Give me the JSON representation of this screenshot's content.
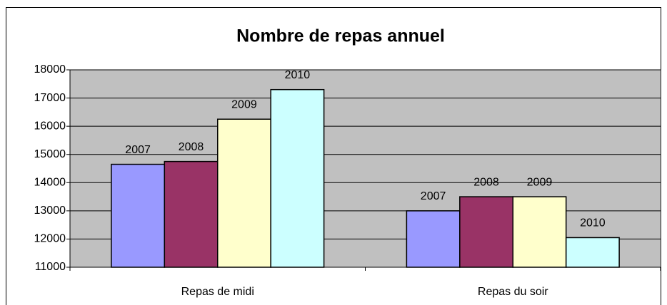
{
  "chart_data": {
    "type": "bar",
    "title": "Nombre de repas annuel",
    "categories": [
      "Repas de midi",
      "Repas du soir"
    ],
    "series": [
      {
        "name": "2007",
        "color": "#9999ff",
        "values": [
          14650,
          13000
        ]
      },
      {
        "name": "2008",
        "color": "#993366",
        "values": [
          14750,
          13500
        ]
      },
      {
        "name": "2009",
        "color": "#ffffcc",
        "values": [
          16250,
          13500
        ]
      },
      {
        "name": "2010",
        "color": "#ccffff",
        "values": [
          17300,
          12050
        ]
      }
    ],
    "ylim": [
      11000,
      18000
    ],
    "yticks": [
      11000,
      12000,
      13000,
      14000,
      15000,
      16000,
      17000,
      18000
    ],
    "grid": true
  }
}
